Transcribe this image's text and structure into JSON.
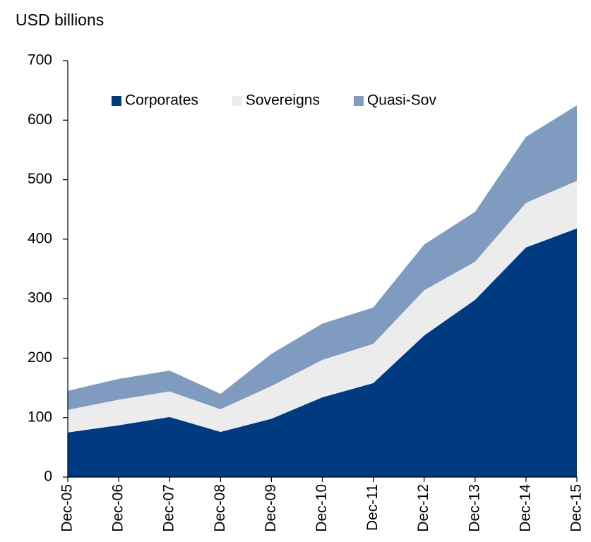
{
  "chart_data": {
    "type": "stacked_area",
    "title": "USD billions",
    "categories": [
      "Dec-05",
      "Dec-06",
      "Dec-07",
      "Dec-08",
      "Dec-09",
      "Dec-10",
      "Dec-11",
      "Dec-12",
      "Dec-13",
      "Dec-14",
      "Dec-15"
    ],
    "series": [
      {
        "name": "Corporates",
        "color": "#003a80",
        "values": [
          75,
          87,
          101,
          76,
          98,
          134,
          158,
          238,
          298,
          386,
          418
        ]
      },
      {
        "name": "Sovereigns",
        "color": "#ececec",
        "values": [
          38,
          43,
          43,
          38,
          55,
          63,
          66,
          76,
          64,
          75,
          80
        ]
      },
      {
        "name": "Quasi-Sov",
        "color": "#7f9cc0",
        "values": [
          32,
          35,
          35,
          26,
          54,
          61,
          61,
          77,
          84,
          111,
          127
        ]
      }
    ],
    "ylim": [
      0,
      700
    ],
    "yticks": [
      0,
      100,
      200,
      300,
      400,
      500,
      600,
      700
    ],
    "legend": "top"
  }
}
